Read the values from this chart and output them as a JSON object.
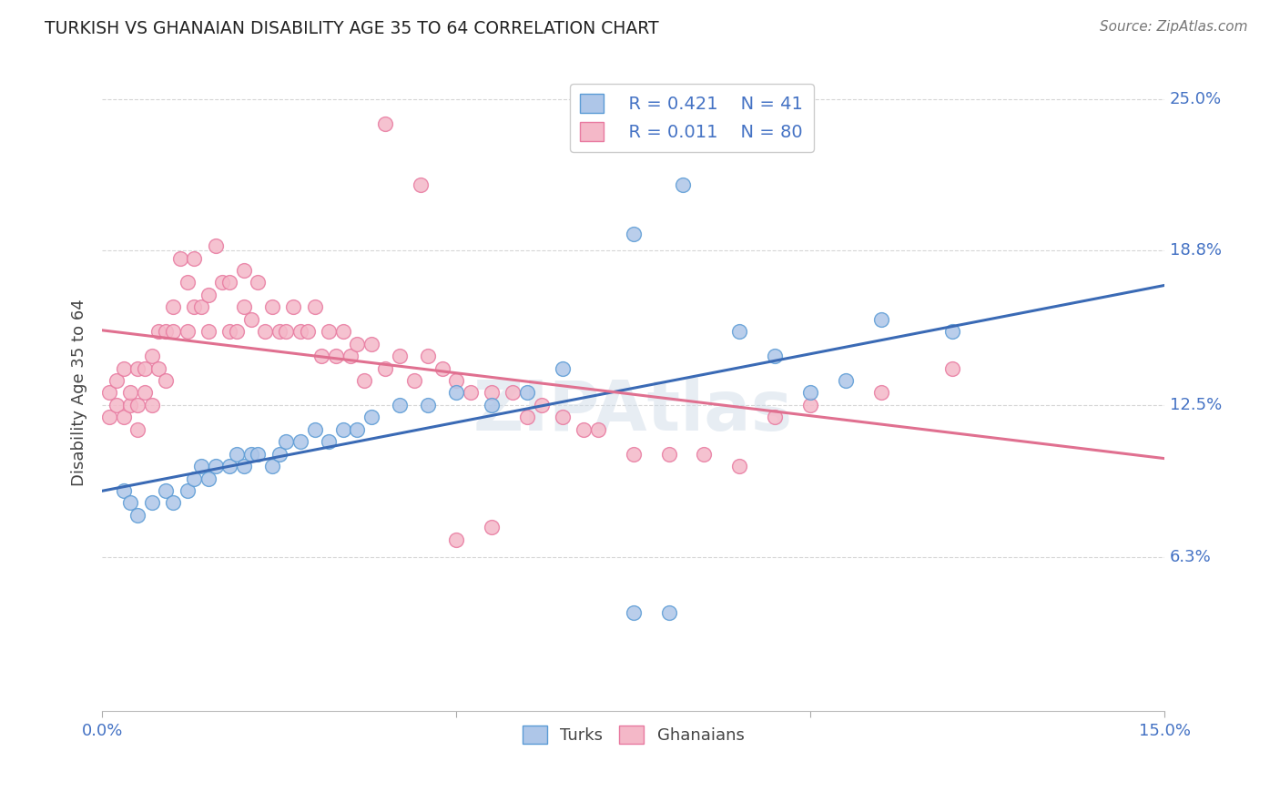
{
  "title": "TURKISH VS GHANAIAN DISABILITY AGE 35 TO 64 CORRELATION CHART",
  "source": "Source: ZipAtlas.com",
  "ylabel": "Disability Age 35 to 64",
  "xlim": [
    0.0,
    0.15
  ],
  "ylim": [
    0.0,
    0.25
  ],
  "yticks": [
    0.063,
    0.125,
    0.188,
    0.25
  ],
  "ytick_labels": [
    "6.3%",
    "12.5%",
    "18.8%",
    "25.0%"
  ],
  "background_color": "#ffffff",
  "grid_color": "#cccccc",
  "turks_color": "#aec6e8",
  "turks_edge_color": "#5b9bd5",
  "ghanaians_color": "#f4b8c8",
  "ghanaians_edge_color": "#e87aa0",
  "turks_line_color": "#3a6ab5",
  "ghanaians_line_color": "#e07090",
  "legend_r_turks": "R = 0.421",
  "legend_n_turks": "N = 41",
  "legend_r_ghana": "R = 0.011",
  "legend_n_ghana": "N = 80",
  "turks_x": [
    0.003,
    0.004,
    0.005,
    0.007,
    0.009,
    0.01,
    0.012,
    0.013,
    0.014,
    0.015,
    0.016,
    0.018,
    0.019,
    0.02,
    0.021,
    0.022,
    0.024,
    0.025,
    0.026,
    0.028,
    0.03,
    0.032,
    0.034,
    0.036,
    0.038,
    0.042,
    0.046,
    0.05,
    0.055,
    0.06,
    0.065,
    0.075,
    0.082,
    0.09,
    0.095,
    0.1,
    0.105,
    0.11,
    0.12,
    0.075,
    0.08
  ],
  "turks_y": [
    0.09,
    0.085,
    0.08,
    0.085,
    0.09,
    0.085,
    0.09,
    0.095,
    0.1,
    0.095,
    0.1,
    0.1,
    0.105,
    0.1,
    0.105,
    0.105,
    0.1,
    0.105,
    0.11,
    0.11,
    0.115,
    0.11,
    0.115,
    0.115,
    0.12,
    0.125,
    0.125,
    0.13,
    0.125,
    0.13,
    0.14,
    0.195,
    0.215,
    0.155,
    0.145,
    0.13,
    0.135,
    0.16,
    0.155,
    0.04,
    0.04
  ],
  "ghanaians_x": [
    0.001,
    0.001,
    0.002,
    0.002,
    0.003,
    0.003,
    0.004,
    0.004,
    0.005,
    0.005,
    0.005,
    0.006,
    0.006,
    0.007,
    0.007,
    0.008,
    0.008,
    0.009,
    0.009,
    0.01,
    0.01,
    0.011,
    0.012,
    0.012,
    0.013,
    0.013,
    0.014,
    0.015,
    0.015,
    0.016,
    0.017,
    0.018,
    0.018,
    0.019,
    0.02,
    0.02,
    0.021,
    0.022,
    0.023,
    0.024,
    0.025,
    0.026,
    0.027,
    0.028,
    0.029,
    0.03,
    0.031,
    0.032,
    0.033,
    0.034,
    0.035,
    0.036,
    0.037,
    0.038,
    0.04,
    0.042,
    0.044,
    0.046,
    0.048,
    0.05,
    0.052,
    0.055,
    0.058,
    0.06,
    0.062,
    0.065,
    0.068,
    0.07,
    0.075,
    0.08,
    0.085,
    0.09,
    0.095,
    0.1,
    0.11,
    0.12,
    0.04,
    0.045,
    0.05,
    0.055
  ],
  "ghanaians_y": [
    0.12,
    0.13,
    0.125,
    0.135,
    0.12,
    0.14,
    0.125,
    0.13,
    0.115,
    0.125,
    0.14,
    0.13,
    0.14,
    0.125,
    0.145,
    0.14,
    0.155,
    0.135,
    0.155,
    0.155,
    0.165,
    0.185,
    0.155,
    0.175,
    0.165,
    0.185,
    0.165,
    0.155,
    0.17,
    0.19,
    0.175,
    0.155,
    0.175,
    0.155,
    0.165,
    0.18,
    0.16,
    0.175,
    0.155,
    0.165,
    0.155,
    0.155,
    0.165,
    0.155,
    0.155,
    0.165,
    0.145,
    0.155,
    0.145,
    0.155,
    0.145,
    0.15,
    0.135,
    0.15,
    0.14,
    0.145,
    0.135,
    0.145,
    0.14,
    0.135,
    0.13,
    0.13,
    0.13,
    0.12,
    0.125,
    0.12,
    0.115,
    0.115,
    0.105,
    0.105,
    0.105,
    0.1,
    0.12,
    0.125,
    0.13,
    0.14,
    0.24,
    0.215,
    0.07,
    0.075
  ]
}
